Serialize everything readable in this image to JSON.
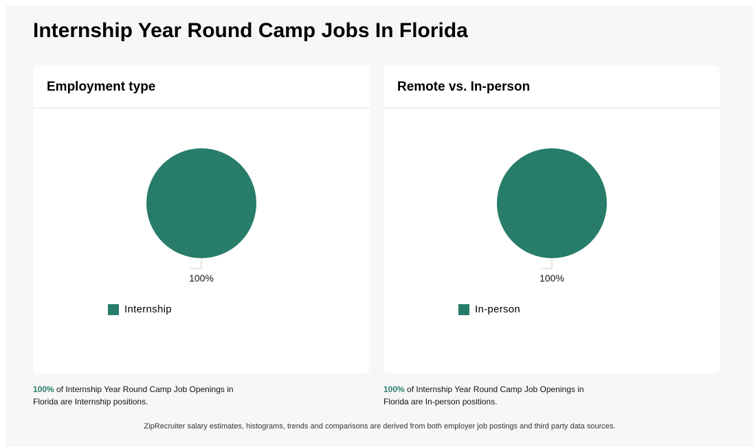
{
  "page_title": "Internship Year Round Camp Jobs In Florida",
  "colors": {
    "accent": "#277d69",
    "percent_text": "#2a7d6a"
  },
  "cards": [
    {
      "title": "Employment type",
      "percent_label": "100%",
      "legend_label": "Internship",
      "caption_pct": "100%",
      "caption_text": " of Internship Year Round Camp Job Openings in Florida are Internship positions."
    },
    {
      "title": "Remote vs. In-person",
      "percent_label": "100%",
      "legend_label": "In-person",
      "caption_pct": "100%",
      "caption_text": " of Internship Year Round Camp Job Openings in Florida are In-person positions."
    }
  ],
  "footnote": "ZipRecruiter salary estimates, histograms, trends and comparisons are derived from both employer job postings and third party data sources.",
  "chart_data": [
    {
      "type": "pie",
      "title": "Employment type",
      "categories": [
        "Internship"
      ],
      "values": [
        100
      ],
      "data_labels": [
        "100%"
      ],
      "legend_placement": "bottom-left"
    },
    {
      "type": "pie",
      "title": "Remote vs. In-person",
      "categories": [
        "In-person"
      ],
      "values": [
        100
      ],
      "data_labels": [
        "100%"
      ],
      "legend_placement": "bottom-left"
    }
  ]
}
